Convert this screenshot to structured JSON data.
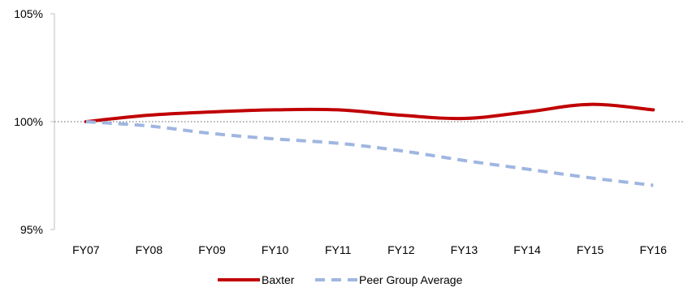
{
  "chart_data": {
    "type": "line",
    "title": "",
    "xlabel": "",
    "ylabel": "",
    "categories": [
      "FY07",
      "FY08",
      "FY09",
      "FY10",
      "FY11",
      "FY12",
      "FY13",
      "FY14",
      "FY15",
      "FY16"
    ],
    "ylim": [
      95,
      105
    ],
    "yticks": [
      95,
      100,
      105
    ],
    "ytick_labels": [
      "95%",
      "100%",
      "105%"
    ],
    "reference_line": {
      "value": 100,
      "style": "dotted",
      "color": "#808080"
    },
    "grid": false,
    "legend_position": "bottom",
    "series": [
      {
        "name": "Baxter",
        "values": [
          100.0,
          100.3,
          100.45,
          100.55,
          100.55,
          100.3,
          100.15,
          100.45,
          100.8,
          100.55
        ],
        "color": "#c00000",
        "style": "solid"
      },
      {
        "name": "Peer Group Average",
        "values": [
          100.0,
          99.8,
          99.45,
          99.2,
          99.0,
          98.65,
          98.2,
          97.8,
          97.4,
          97.05
        ],
        "color": "#9fb6e0",
        "style": "dashed"
      }
    ]
  }
}
